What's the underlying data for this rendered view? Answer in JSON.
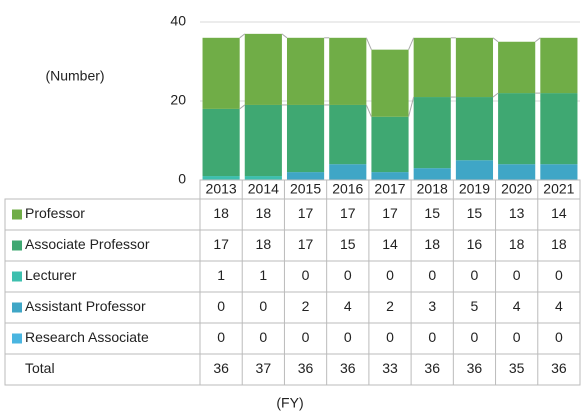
{
  "chart_data": {
    "type": "stacked-bar",
    "y_label": "(Number)",
    "x_label": "(FY)",
    "categories": [
      "2013",
      "2014",
      "2015",
      "2016",
      "2017",
      "2018",
      "2019",
      "2020",
      "2021"
    ],
    "series": [
      {
        "name": "Professor",
        "color": "#70ad47",
        "values": [
          18,
          18,
          17,
          17,
          17,
          15,
          15,
          13,
          14
        ]
      },
      {
        "name": "Associate Professor",
        "color": "#3fa872",
        "values": [
          17,
          18,
          17,
          15,
          14,
          18,
          16,
          18,
          18
        ]
      },
      {
        "name": "Lecturer",
        "color": "#3dbfae",
        "values": [
          1,
          1,
          0,
          0,
          0,
          0,
          0,
          0,
          0
        ]
      },
      {
        "name": "Assistant Professor",
        "color": "#3fa6c6",
        "values": [
          0,
          0,
          2,
          4,
          2,
          3,
          5,
          4,
          4
        ]
      },
      {
        "name": "Research Associate",
        "color": "#4ab5e0",
        "values": [
          0,
          0,
          0,
          0,
          0,
          0,
          0,
          0,
          0
        ]
      }
    ],
    "totals_label": "Total",
    "totals": [
      36,
      37,
      36,
      36,
      33,
      36,
      36,
      35,
      36
    ],
    "ylim": [
      0,
      40
    ],
    "yticks": [
      0,
      20,
      40
    ],
    "grid": true
  }
}
